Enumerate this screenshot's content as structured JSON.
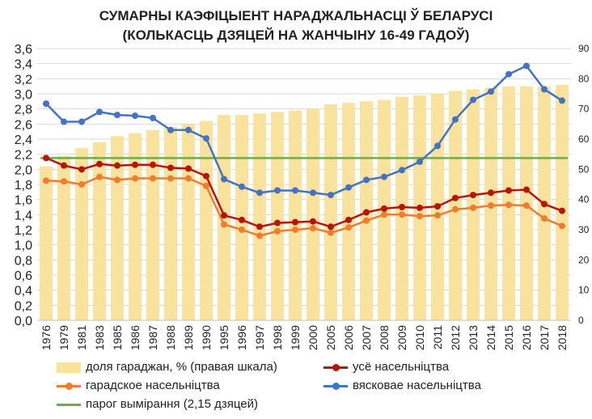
{
  "chart_data": {
    "type": "bar+line",
    "title": "СУМАРНЫ КАЭФІЦЫЕНТ НАРАДЖАЛЬНАСЦІ Ў БЕЛАРУСІ",
    "subtitle": "(КОЛЬКАСЦЬ ДЗЯЦЕЙ НА ЖАНЧЫНУ 16-49 ГАДОЎ)",
    "categories": [
      "1976",
      "1979",
      "1981",
      "1983",
      "1985",
      "1986",
      "1987",
      "1988",
      "1989",
      "1990",
      "1995",
      "1996",
      "1997",
      "1998",
      "1999",
      "2000",
      "2005",
      "2006",
      "2007",
      "2008",
      "2009",
      "2010",
      "2011",
      "2012",
      "2013",
      "2014",
      "2015",
      "2016",
      "2017",
      "2018"
    ],
    "left_axis": {
      "min": 0,
      "max": 3.6,
      "step": 0.2,
      "tick_labels": [
        "0,0",
        "0,2",
        "0,4",
        "0,6",
        "0,8",
        "1,0",
        "1,2",
        "1,4",
        "1,6",
        "1,8",
        "2,0",
        "2,2",
        "2,4",
        "2,6",
        "2,8",
        "3,0",
        "3,2",
        "3,4",
        "3,6"
      ]
    },
    "right_axis": {
      "min": 0,
      "max": 90,
      "step": 10,
      "tick_labels": [
        "0",
        "10",
        "20",
        "30",
        "40",
        "50",
        "60",
        "70",
        "80",
        "90"
      ]
    },
    "gridlines": true,
    "bars": {
      "name": "доля гараджан, % (правая шкала)",
      "axis": "right",
      "color": "#f9e29b",
      "values": [
        51,
        54.5,
        57,
        59,
        61,
        62,
        63,
        64,
        65,
        66,
        68,
        68,
        68.5,
        69,
        69.5,
        70,
        71.5,
        72,
        72.5,
        73,
        74,
        74.5,
        75,
        76,
        76.5,
        77,
        77.5,
        77.5,
        77.5,
        78
      ]
    },
    "series": [
      {
        "name": "усё насельніцтва",
        "axis": "left",
        "color": "#b8140c",
        "values": [
          2.15,
          2.05,
          2.0,
          2.07,
          2.05,
          2.06,
          2.06,
          2.02,
          2.01,
          1.91,
          1.39,
          1.33,
          1.24,
          1.29,
          1.3,
          1.31,
          1.24,
          1.33,
          1.43,
          1.48,
          1.5,
          1.49,
          1.51,
          1.62,
          1.66,
          1.69,
          1.72,
          1.73,
          1.54,
          1.45
        ]
      },
      {
        "name": "гарадское насельніцтва",
        "axis": "left",
        "color": "#ed7d31",
        "values": [
          1.85,
          1.84,
          1.8,
          1.9,
          1.86,
          1.88,
          1.88,
          1.88,
          1.88,
          1.78,
          1.27,
          1.2,
          1.12,
          1.18,
          1.2,
          1.22,
          1.16,
          1.23,
          1.32,
          1.4,
          1.4,
          1.38,
          1.39,
          1.47,
          1.49,
          1.52,
          1.53,
          1.52,
          1.35,
          1.25
        ]
      },
      {
        "name": "вясковае насельніцтва",
        "axis": "left",
        "color": "#4472c4",
        "values": [
          2.87,
          2.63,
          2.63,
          2.76,
          2.72,
          2.71,
          2.68,
          2.52,
          2.52,
          2.41,
          1.87,
          1.77,
          1.69,
          1.72,
          1.72,
          1.69,
          1.66,
          1.76,
          1.86,
          1.9,
          1.99,
          2.1,
          2.31,
          2.66,
          2.92,
          3.03,
          3.26,
          3.37,
          3.06,
          2.91
        ]
      }
    ],
    "threshold": {
      "name": "парог вымірання (2,15 дзяцей)",
      "axis": "left",
      "value": 2.15,
      "color": "#70ad47"
    },
    "legend_position": "bottom"
  }
}
